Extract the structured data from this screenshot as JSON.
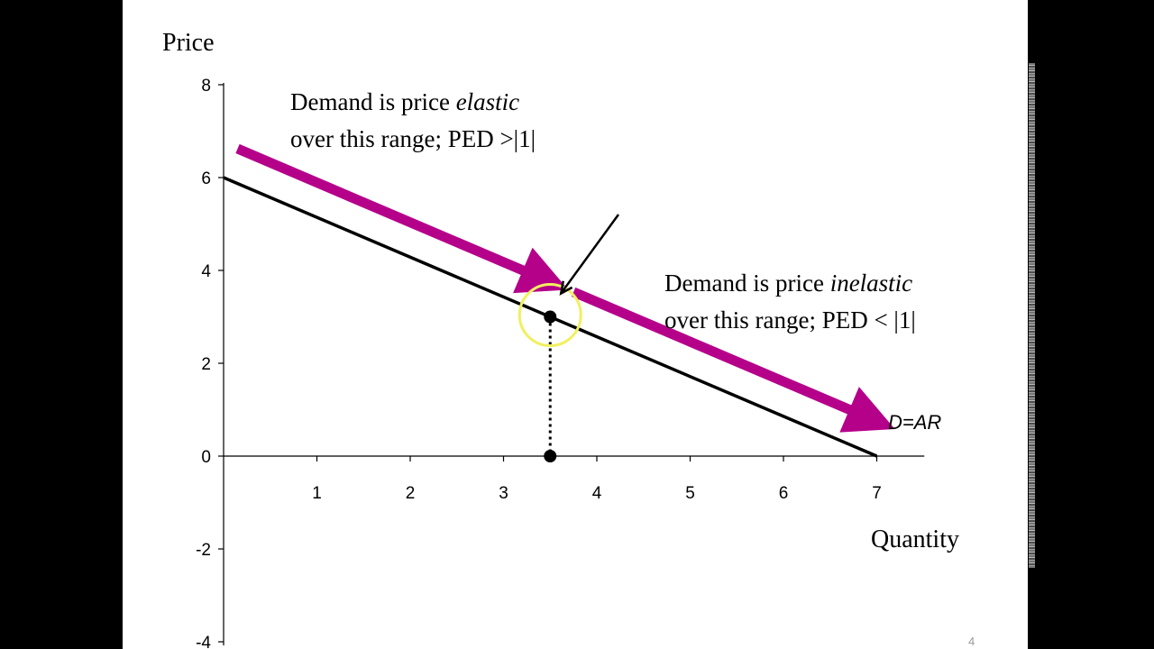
{
  "chart_data": {
    "type": "line",
    "title": "",
    "xlabel": "Quantity",
    "ylabel": "Price",
    "xlim": [
      0,
      7.5
    ],
    "ylim": [
      -4,
      8
    ],
    "x_ticks": [
      1,
      2,
      3,
      4,
      5,
      6,
      7
    ],
    "y_ticks": [
      -4,
      -2,
      0,
      2,
      4,
      6,
      8
    ],
    "grid": false,
    "series": [
      {
        "name": "D=AR",
        "x": [
          0,
          7
        ],
        "y": [
          6,
          0
        ]
      }
    ],
    "highlight_point": {
      "x": 3.5,
      "y": 3
    },
    "highlight_point_axis": {
      "x": 3.5,
      "y": 0
    },
    "curve_label": "D=AR",
    "annotations": {
      "elastic": {
        "prefix": "Demand is price ",
        "italic": "elastic",
        "line2": "over this range; PED >|1|"
      },
      "inelastic": {
        "prefix": "Demand is price ",
        "italic": "inelastic",
        "line2": "over this range; PED < |1|"
      }
    },
    "colors": {
      "curve": "#000000",
      "arrows": "#b5008a",
      "circle": "#f0f060",
      "axes": "#000000"
    }
  },
  "slide_number": "4"
}
